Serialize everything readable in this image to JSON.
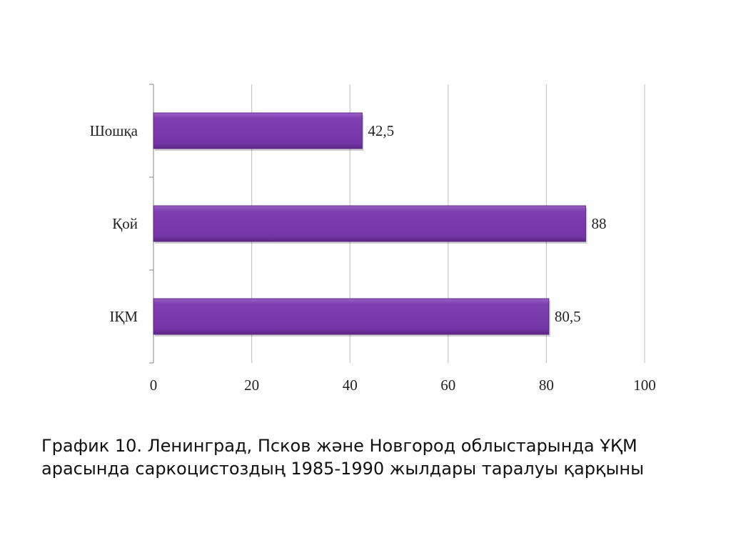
{
  "chart_data": {
    "type": "bar",
    "orientation": "horizontal",
    "categories": [
      "Шошқа",
      "Қой",
      "ІҚМ"
    ],
    "values": [
      42.5,
      88,
      80.5
    ],
    "value_labels": [
      "42,5",
      "88",
      "80,5"
    ],
    "xlim": [
      0,
      100
    ],
    "x_ticks": [
      0,
      20,
      40,
      60,
      80,
      100
    ],
    "grid": true,
    "bar_color": "#7a3ba8"
  },
  "caption": {
    "line1": "График 10. Ленинград, Псков және Новгород облыстарында ҰҚМ",
    "line2": "арасында саркоцистоздың 1985-1990 жылдары таралуы қарқыны"
  }
}
